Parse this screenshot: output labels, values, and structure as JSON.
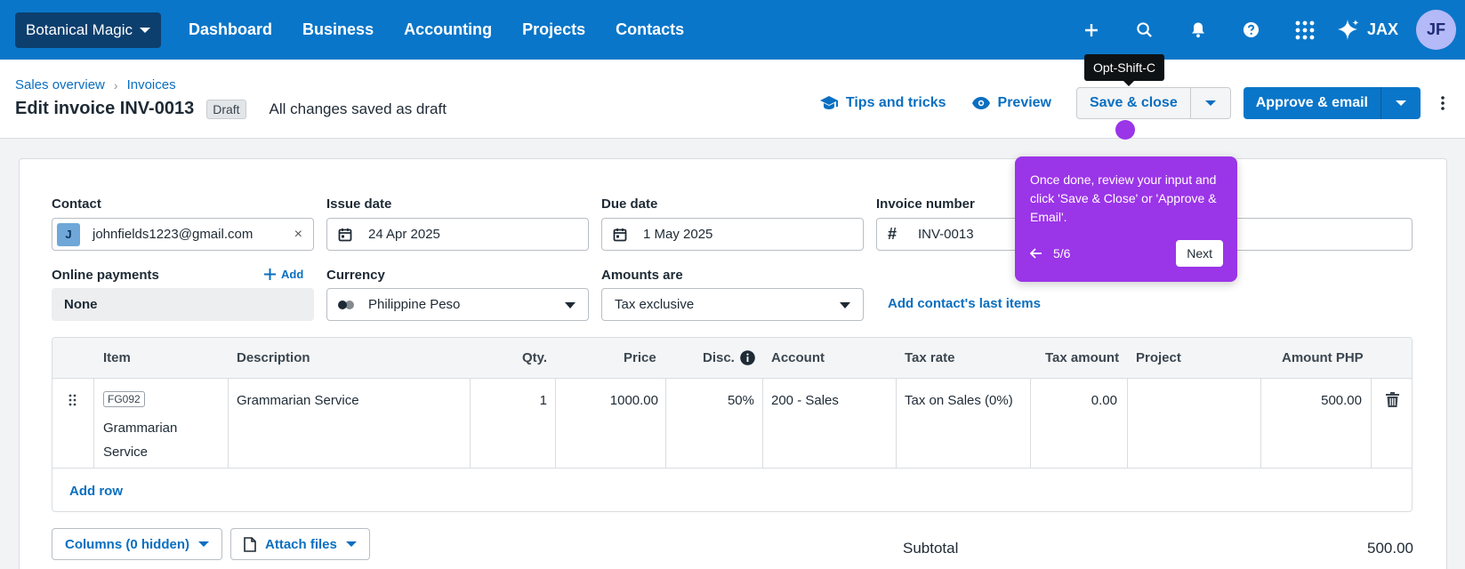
{
  "topbar": {
    "org_name": "Botanical Magic",
    "nav": [
      "Dashboard",
      "Business",
      "Accounting",
      "Projects",
      "Contacts"
    ],
    "assistant": "JAX",
    "avatar_initials": "JF"
  },
  "header": {
    "breadcrumb": [
      "Sales overview",
      "Invoices"
    ],
    "title": "Edit invoice INV-0013",
    "status_badge": "Draft",
    "saved_status": "All changes saved as draft",
    "tips_label": "Tips and tricks",
    "preview_label": "Preview",
    "save_close_label": "Save & close",
    "approve_email_label": "Approve & email"
  },
  "tooltip": {
    "shortcut": "Opt-Shift-C"
  },
  "guide": {
    "text": "Once done, review your input and click 'Save & Close' or 'Approve & Email'.",
    "step": "5/6",
    "next_label": "Next"
  },
  "form": {
    "contact": {
      "label": "Contact",
      "chip": "J",
      "value": "johnfields1223@gmail.com",
      "clear": "×"
    },
    "issue_date": {
      "label": "Issue date",
      "value": "24 Apr 2025"
    },
    "due_date": {
      "label": "Due date",
      "value": "1 May 2025"
    },
    "invoice_number": {
      "label": "Invoice number",
      "prefix": "#",
      "value": "INV-0013"
    },
    "online_payments": {
      "label": "Online payments",
      "add_label": "Add",
      "value": "None"
    },
    "currency": {
      "label": "Currency",
      "value": "Philippine Peso"
    },
    "amounts_are": {
      "label": "Amounts are",
      "value": "Tax exclusive"
    },
    "add_last_items": "Add contact's last items"
  },
  "table": {
    "headers": {
      "item": "Item",
      "description": "Description",
      "qty": "Qty.",
      "price": "Price",
      "disc": "Disc.",
      "account": "Account",
      "tax_rate": "Tax rate",
      "tax_amount": "Tax amount",
      "project": "Project",
      "amount": "Amount PHP"
    },
    "rows": [
      {
        "code": "FG092",
        "item": "Grammarian Service",
        "description": "Grammarian Service",
        "qty": "1",
        "price": "1000.00",
        "disc": "50%",
        "account": "200 - Sales",
        "tax_rate": "Tax on Sales (0%)",
        "tax_amount": "0.00",
        "project": "",
        "amount": "500.00"
      }
    ],
    "add_row_label": "Add row"
  },
  "footer": {
    "columns_label": "Columns (0 hidden)",
    "attach_label": "Attach files",
    "subtotal_label": "Subtotal",
    "subtotal_value": "500.00"
  },
  "colors": {
    "brand": "#0a76c9",
    "guide": "#9b35e8"
  }
}
